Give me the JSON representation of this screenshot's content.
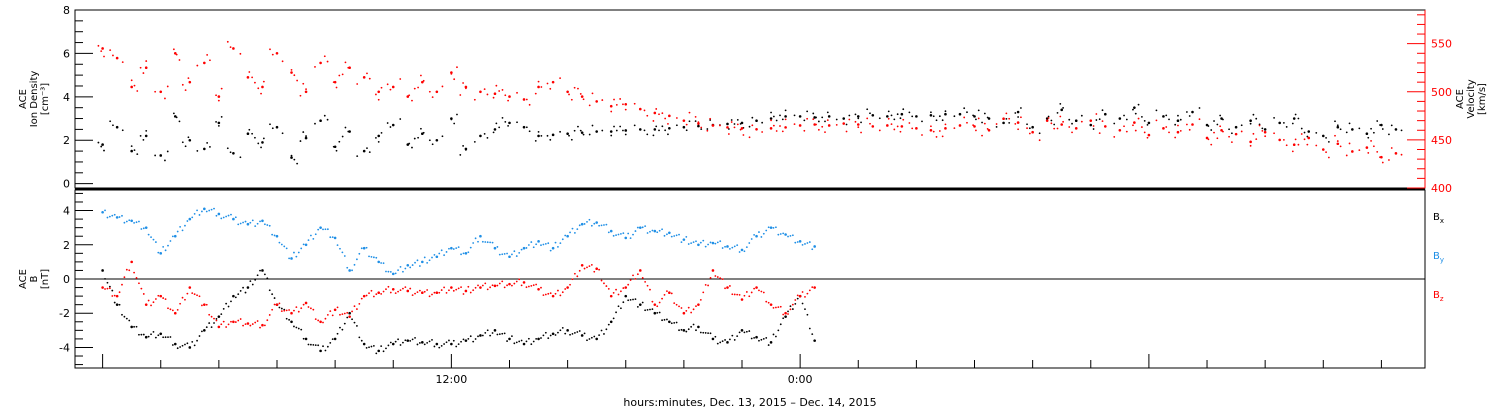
{
  "chart_data": [
    {
      "type": "scatter",
      "panel": "top",
      "ylabel_left": [
        "ACE",
        "Ion Density",
        "[cm⁻³]"
      ],
      "ylabel_right": [
        "ACE",
        "Velocity",
        "[km/s]"
      ],
      "xlim": [
        -0.95,
        45.5
      ],
      "ylim_left": [
        -0.2,
        8
      ],
      "ylim_right": [
        400,
        585
      ],
      "yticks_left": [
        "0",
        "2",
        "4",
        "6",
        "8"
      ],
      "yticks_right": [
        "400",
        "450",
        "500",
        "550"
      ],
      "grid": false,
      "series": [
        {
          "axis": "left",
          "color": "#000000",
          "x": [
            0,
            0.5,
            1,
            1.5,
            2,
            2.5,
            3,
            3.5,
            4,
            4.5,
            5,
            5.5,
            6,
            6.5,
            7,
            7.5,
            8,
            8.5,
            9,
            9.5,
            10,
            10.5,
            11,
            11.5,
            12,
            12.5,
            13,
            13.5,
            14,
            14.5,
            15,
            15.5,
            16,
            16.5,
            17,
            17.5,
            18,
            18.5,
            19,
            19.5,
            20,
            20.5,
            21,
            21.5,
            22,
            22.5,
            23,
            23.5,
            24,
            24.5,
            25,
            25.5,
            26,
            26.5,
            27,
            27.5,
            28,
            28.5,
            29,
            29.5,
            30,
            30.5,
            31,
            31.5,
            32,
            32.5,
            33,
            33.5,
            34,
            34.5,
            35,
            35.5,
            36,
            36.5,
            37,
            37.5,
            38,
            38.5,
            39,
            39.5,
            40,
            40.5,
            41,
            41.5,
            42,
            42.5,
            43,
            43.5,
            44,
            44.5
          ],
          "y": [
            1.8,
            2.6,
            1.5,
            2.2,
            1.3,
            3.1,
            2.0,
            1.6,
            2.8,
            1.4,
            2.3,
            1.9,
            2.6,
            1.2,
            2.1,
            2.9,
            1.7,
            2.4,
            1.5,
            2.2,
            2.7,
            1.8,
            2.3,
            2.0,
            3.0,
            1.6,
            2.2,
            2.5,
            2.8,
            2.6,
            2.2,
            2.25,
            2.3,
            2.35,
            2.4,
            2.4,
            2.45,
            2.5,
            2.5,
            2.55,
            2.6,
            2.65,
            2.7,
            2.75,
            2.8,
            2.9,
            3.0,
            3.1,
            3.1,
            3.05,
            3.1,
            3.0,
            3.1,
            3.15,
            3.1,
            3.2,
            3.1,
            3.15,
            3.2,
            3.2,
            3.1,
            3.0,
            2.8,
            3.3,
            2.6,
            3.0,
            3.4,
            2.9,
            2.7,
            3.2,
            3.0,
            3.5,
            2.8,
            3.1,
            2.9,
            3.3,
            2.7,
            3.0,
            2.6,
            2.9,
            2.5,
            2.8,
            3.0,
            2.4,
            2.2,
            2.6,
            2.5,
            2.3,
            2.7,
            2.5
          ]
        },
        {
          "axis": "right",
          "color": "#ff0000",
          "x": [
            0,
            0.5,
            1,
            1.5,
            2,
            2.5,
            3,
            3.5,
            4,
            4.5,
            5,
            5.5,
            6,
            6.5,
            7,
            7.5,
            8,
            8.5,
            9,
            9.5,
            10,
            10.5,
            11,
            11.5,
            12,
            12.5,
            13,
            13.5,
            14,
            14.5,
            15,
            15.5,
            16,
            16.5,
            17,
            17.5,
            18,
            18.5,
            19,
            19.5,
            20,
            20.5,
            21,
            21.5,
            22,
            22.5,
            23,
            23.5,
            24,
            24.5,
            25,
            25.5,
            26,
            26.5,
            27,
            27.5,
            28,
            28.5,
            29,
            29.5,
            30,
            30.5,
            31,
            31.5,
            32,
            32.5,
            33,
            33.5,
            34,
            34.5,
            35,
            35.5,
            36,
            36.5,
            37,
            37.5,
            38,
            38.5,
            39,
            39.5,
            40,
            40.5,
            41,
            41.5,
            42,
            42.5,
            43,
            43.5,
            44,
            44.5
          ],
          "y": [
            545,
            535,
            505,
            525,
            500,
            540,
            510,
            530,
            495,
            545,
            515,
            505,
            540,
            520,
            500,
            530,
            510,
            525,
            515,
            500,
            505,
            495,
            510,
            500,
            520,
            505,
            500,
            498,
            495,
            492,
            505,
            510,
            500,
            495,
            490,
            485,
            487,
            482,
            478,
            475,
            470,
            467,
            465,
            463,
            462,
            461,
            462,
            463,
            465,
            466,
            465,
            467,
            466,
            464,
            465,
            464,
            462,
            460,
            462,
            465,
            464,
            460,
            472,
            468,
            458,
            470,
            466,
            462,
            470,
            464,
            460,
            468,
            455,
            462,
            458,
            466,
            452,
            460,
            456,
            448,
            458,
            450,
            445,
            452,
            440,
            446,
            438,
            442,
            432,
            436
          ]
        }
      ]
    },
    {
      "type": "scatter",
      "panel": "bottom",
      "ylabel_left": [
        "ACE",
        "B",
        "[nT]"
      ],
      "xlim": [
        -0.95,
        45.5
      ],
      "ylim": [
        -5.2,
        5.2
      ],
      "yticks": [
        "-4",
        "-2",
        "0",
        "2",
        "4"
      ],
      "xticks": [
        {
          "x": 12,
          "label": "12:00"
        },
        {
          "x": 24,
          "label": "0:00"
        }
      ],
      "xlabel": "hours:minutes, Dec. 13, 2015 – Dec. 14, 2015",
      "zero_line": true,
      "grid": false,
      "legend_placement": "right",
      "series": [
        {
          "name": "Bx",
          "name_main": "B",
          "name_sub": "x",
          "color": "#000000",
          "x": [
            0,
            0.5,
            1,
            1.5,
            2,
            2.5,
            3,
            3.5,
            4,
            4.5,
            5,
            5.5,
            6,
            6.5,
            7,
            7.5,
            8,
            8.5,
            9,
            9.5,
            10,
            10.5,
            11,
            11.5,
            12,
            12.5,
            13,
            13.5,
            14,
            14.5,
            15,
            15.5,
            16,
            16.5,
            17,
            17.5,
            18,
            18.5,
            19,
            19.5,
            20,
            20.5,
            21,
            21.5,
            22,
            22.5,
            23,
            23.5,
            24,
            24.5
          ],
          "y": [
            0.5,
            -1.5,
            -2.8,
            -3.4,
            -3.2,
            -3.8,
            -4.0,
            -3.0,
            -2.2,
            -1.0,
            -0.5,
            0.5,
            -1.5,
            -2.5,
            -3.5,
            -4.2,
            -3.5,
            -2.0,
            -3.8,
            -4.2,
            -3.8,
            -3.6,
            -3.7,
            -3.8,
            -3.8,
            -3.6,
            -3.3,
            -3.0,
            -3.5,
            -3.8,
            -3.5,
            -3.2,
            -3.0,
            -3.3,
            -3.5,
            -2.5,
            -1.0,
            -1.5,
            -2.0,
            -2.5,
            -3.0,
            -2.8,
            -3.5,
            -3.7,
            -3.0,
            -3.4,
            -3.7,
            -2.2,
            -1.0,
            -3.6
          ]
        },
        {
          "name": "By",
          "name_main": "B",
          "name_sub": "y",
          "color": "#1f8fe6",
          "x": [
            0,
            0.5,
            1,
            1.5,
            2,
            2.5,
            3,
            3.5,
            4,
            4.5,
            5,
            5.5,
            6,
            6.5,
            7,
            7.5,
            8,
            8.5,
            9,
            9.5,
            10,
            10.5,
            11,
            11.5,
            12,
            12.5,
            13,
            13.5,
            14,
            14.5,
            15,
            15.5,
            16,
            16.5,
            17,
            17.5,
            18,
            18.5,
            19,
            19.5,
            20,
            20.5,
            21,
            21.5,
            22,
            22.5,
            23,
            23.5,
            24,
            24.5
          ],
          "y": [
            3.9,
            3.6,
            3.4,
            3.0,
            1.5,
            2.5,
            3.5,
            4.1,
            3.8,
            3.5,
            3.2,
            3.4,
            2.5,
            1.2,
            2.0,
            3.0,
            2.4,
            0.5,
            1.8,
            1.0,
            0.3,
            0.8,
            1.0,
            1.3,
            1.8,
            1.5,
            2.5,
            1.8,
            1.3,
            1.8,
            2.2,
            1.8,
            2.5,
            3.2,
            3.3,
            2.8,
            2.4,
            3.0,
            2.8,
            2.7,
            2.3,
            2.0,
            2.1,
            1.9,
            1.7,
            2.5,
            3.0,
            2.6,
            2.2,
            1.9
          ]
        },
        {
          "name": "Bz",
          "name_main": "B",
          "name_sub": "z",
          "color": "#ff0000",
          "x": [
            0,
            0.5,
            1,
            1.5,
            2,
            2.5,
            3,
            3.5,
            4,
            4.5,
            5,
            5.5,
            6,
            6.5,
            7,
            7.5,
            8,
            8.5,
            9,
            9.5,
            10,
            10.5,
            11,
            11.5,
            12,
            12.5,
            13,
            13.5,
            14,
            14.5,
            15,
            15.5,
            16,
            16.5,
            17,
            17.5,
            18,
            18.5,
            19,
            19.5,
            20,
            20.5,
            21,
            21.5,
            22,
            22.5,
            23,
            23.5,
            24,
            24.5
          ],
          "y": [
            -0.5,
            -1.0,
            1.0,
            -1.5,
            -1.0,
            -2.0,
            -0.5,
            -1.5,
            -2.8,
            -2.5,
            -2.6,
            -2.7,
            -1.5,
            -2.0,
            -1.4,
            -2.5,
            -1.8,
            -2.2,
            -1.0,
            -0.8,
            -0.6,
            -0.7,
            -0.8,
            -0.8,
            -0.5,
            -0.7,
            -0.5,
            -0.4,
            -0.3,
            -0.2,
            -0.6,
            -1.0,
            -0.5,
            0.8,
            0.6,
            -1.0,
            -0.5,
            0.5,
            -1.5,
            -0.8,
            -2.0,
            -1.5,
            0.5,
            -0.5,
            -1.2,
            -0.5,
            -1.5,
            -2.0,
            -1.0,
            -0.5
          ]
        }
      ]
    }
  ]
}
